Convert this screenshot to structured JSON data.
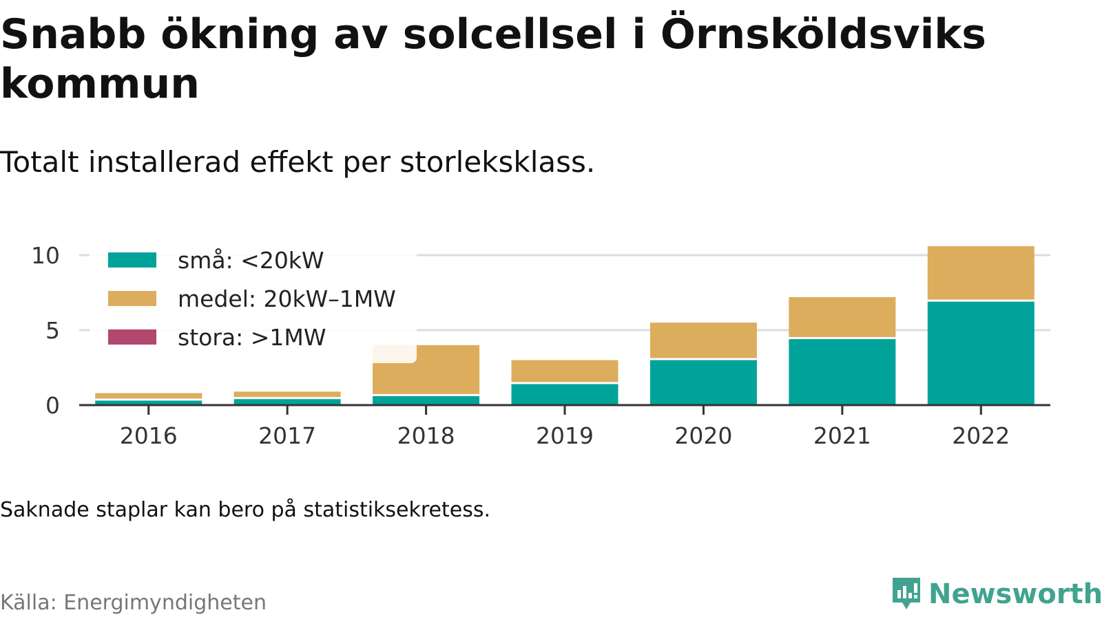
{
  "title": "Snabb ökning av solcellsel i Örnsköldsviks kommun",
  "subtitle": "Totalt installerad effekt per storleksklass.",
  "note": "Saknade staplar kan bero på statistiksekretess.",
  "source": "Källa: Energimyndigheten",
  "brand": {
    "name": "Newsworthy",
    "icon": "newsworthy-logo-icon",
    "color": "#41a38f"
  },
  "colors": {
    "sma": "#00a39a",
    "medel": "#dcad5c",
    "stora": "#b2476f",
    "grid": "#dcdcdc",
    "axis": "#333333",
    "tick_text": "#333333"
  },
  "chart_data": {
    "type": "bar",
    "stacked": true,
    "categories": [
      "2016",
      "2017",
      "2018",
      "2019",
      "2020",
      "2021",
      "2022"
    ],
    "series": [
      {
        "name": "små: <20kW",
        "color": "#00a39a",
        "values": [
          0.3,
          0.4,
          0.6,
          1.4,
          3.0,
          4.4,
          6.9
        ]
      },
      {
        "name": "medel: 20kW–1MW",
        "color": "#dcad5c",
        "values": [
          0.5,
          0.5,
          3.4,
          1.6,
          2.5,
          2.8,
          3.7
        ]
      },
      {
        "name": "stora: >1MW",
        "color": "#b2476f",
        "values": [
          0,
          0,
          0,
          0,
          0,
          0,
          0
        ]
      }
    ],
    "ylim": [
      0,
      10.6
    ],
    "yticks": [
      0,
      5,
      10
    ],
    "grid": true,
    "legend_position": "top-left"
  }
}
